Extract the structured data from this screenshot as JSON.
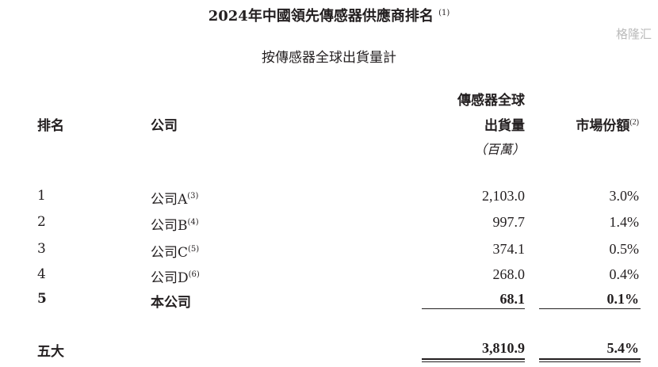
{
  "title": "2024年中國領先傳感器供應商排名",
  "title_note": "(1)",
  "subtitle": "按傳感器全球出貨量計",
  "headers": {
    "rank": "排名",
    "company": "公司",
    "shipments_line1": "傳感器全球",
    "shipments_line2": "出貨量",
    "shipments_unit": "（百萬）",
    "share": "市場份額",
    "share_note": "(2)"
  },
  "rows": [
    {
      "rank": "1",
      "company": "公司A",
      "note": "(3)",
      "shipments": "2,103.0",
      "share": "3.0%"
    },
    {
      "rank": "2",
      "company": "公司B",
      "note": "(4)",
      "shipments": "997.7",
      "share": "1.4%"
    },
    {
      "rank": "3",
      "company": "公司C",
      "note": "(5)",
      "shipments": "374.1",
      "share": "0.5%"
    },
    {
      "rank": "4",
      "company": "公司D",
      "note": "(6)",
      "shipments": "268.0",
      "share": "0.4%"
    },
    {
      "rank": "5",
      "company": "本公司",
      "note": "",
      "shipments": "68.1",
      "share": "0.1%"
    }
  ],
  "total": {
    "label": "五大",
    "shipments": "3,810.9",
    "share": "5.4%"
  },
  "watermark": "格隆汇"
}
